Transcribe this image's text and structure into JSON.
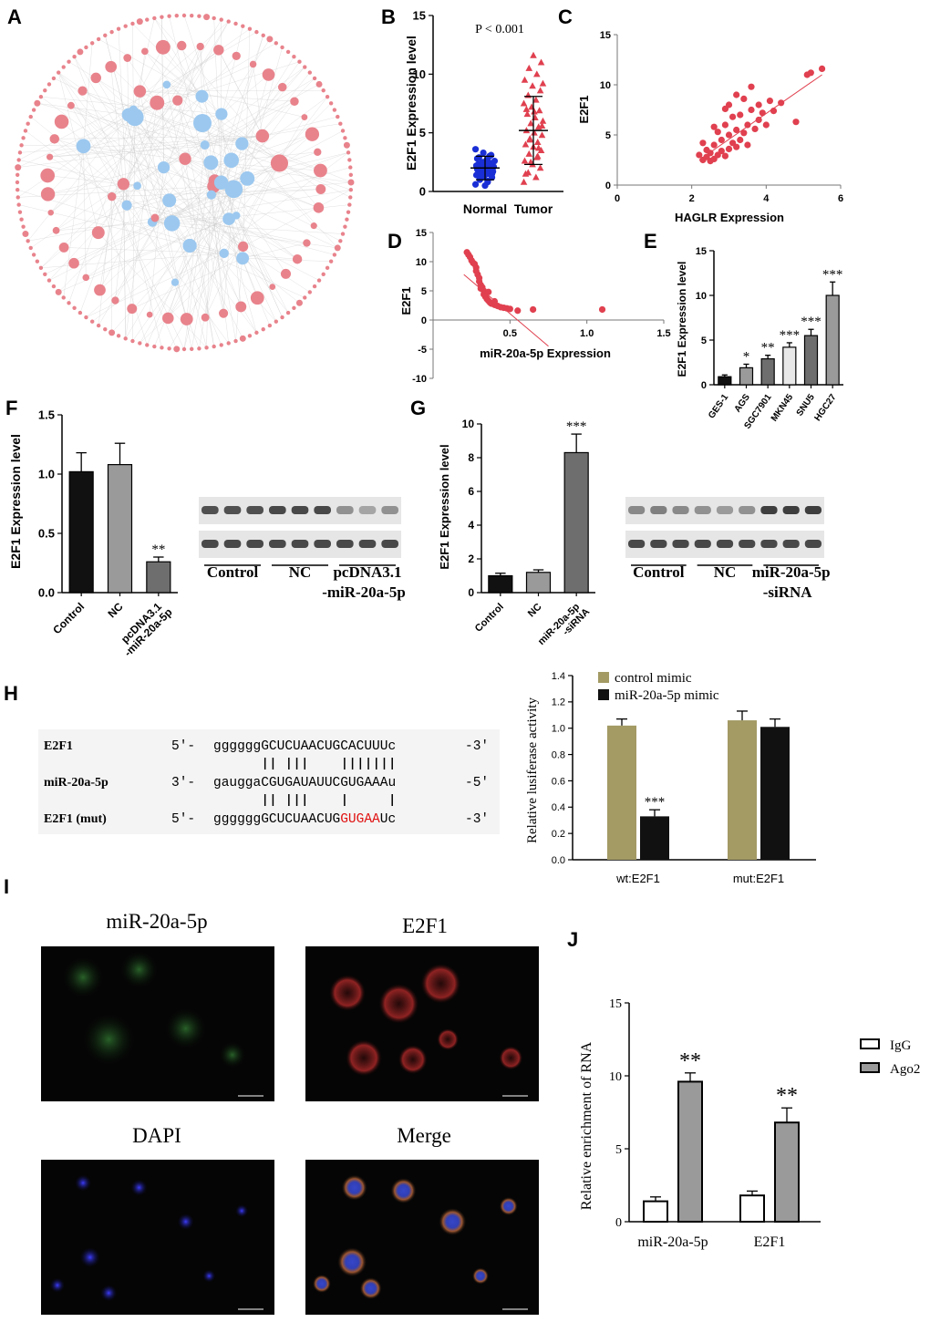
{
  "panels": {
    "A": "A",
    "B": "B",
    "C": "C",
    "D": "D",
    "E": "E",
    "F": "F",
    "G": "G",
    "H": "H",
    "I": "I",
    "J": "J"
  },
  "colors": {
    "red": "#e0404f",
    "blue": "#1a2fd6",
    "network_pink": "#e8838c",
    "network_blue": "#9cc8ef",
    "olive": "#a39a64",
    "gray": "#9a9a9a",
    "darkgray": "#6e6e6e",
    "black": "#111111"
  },
  "chart_data": [
    {
      "panel": "A",
      "type": "network",
      "title": "",
      "node_groups": [
        {
          "color": "#e8838c"
        },
        {
          "color": "#9cc8ef"
        }
      ]
    },
    {
      "panel": "B",
      "type": "scatter",
      "ylabel": "E2F1 Expression level",
      "annotation": "P < 0.001",
      "ylim": [
        0,
        15
      ],
      "yticks": [
        "0",
        "5",
        "10",
        "15"
      ],
      "categories": [
        "Normal",
        "Tumor"
      ],
      "series": [
        {
          "name": "Normal",
          "color": "#1a2fd6",
          "mean": 2.0,
          "sd": 1.0,
          "values": [
            0.6,
            0.9,
            1.1,
            1.2,
            1.3,
            1.4,
            1.5,
            1.6,
            1.7,
            1.8,
            1.9,
            2.0,
            2.0,
            2.1,
            2.2,
            2.3,
            2.4,
            2.5,
            2.6,
            2.7,
            2.9,
            3.1,
            3.3,
            3.6,
            0.8,
            1.0,
            1.5,
            1.9,
            2.2,
            2.5,
            1.2,
            1.7,
            0.5,
            2.8,
            3.0
          ]
        },
        {
          "name": "Tumor",
          "color": "#e0404f",
          "mean": 5.2,
          "sd": 2.9,
          "values": [
            0.8,
            1.2,
            1.6,
            2.0,
            2.3,
            2.6,
            2.9,
            3.2,
            3.5,
            3.8,
            4.0,
            4.2,
            4.5,
            4.8,
            5.0,
            5.2,
            5.5,
            5.8,
            6.0,
            6.3,
            6.6,
            6.9,
            7.2,
            7.5,
            7.8,
            8.2,
            8.6,
            9.0,
            9.5,
            10.0,
            10.5,
            11.0,
            11.6,
            1.5,
            3.0,
            4.4,
            5.6,
            6.8,
            7.0,
            3.7,
            2.5,
            9.2
          ]
        }
      ]
    },
    {
      "panel": "C",
      "type": "scatter",
      "xlabel": "HAGLR Expression",
      "ylabel": "E2F1",
      "xlim": [
        0,
        6
      ],
      "ylim": [
        0,
        15
      ],
      "xticks": [
        "0",
        "2",
        "4",
        "6"
      ],
      "yticks": [
        "0",
        "5",
        "10",
        "15"
      ],
      "color": "#e0404f",
      "points": [
        [
          2.2,
          3.0
        ],
        [
          2.3,
          2.5
        ],
        [
          2.4,
          2.8
        ],
        [
          2.4,
          3.5
        ],
        [
          2.5,
          2.4
        ],
        [
          2.5,
          3.2
        ],
        [
          2.6,
          2.6
        ],
        [
          2.6,
          4.0
        ],
        [
          2.7,
          3.0
        ],
        [
          2.7,
          5.3
        ],
        [
          2.8,
          3.4
        ],
        [
          2.8,
          4.5
        ],
        [
          2.9,
          2.9
        ],
        [
          2.9,
          6.0
        ],
        [
          3.0,
          3.6
        ],
        [
          3.0,
          5.0
        ],
        [
          3.0,
          8.0
        ],
        [
          3.1,
          4.2
        ],
        [
          3.1,
          6.8
        ],
        [
          3.2,
          3.8
        ],
        [
          3.2,
          5.5
        ],
        [
          3.2,
          9.0
        ],
        [
          3.3,
          4.5
        ],
        [
          3.3,
          7.0
        ],
        [
          3.4,
          5.2
        ],
        [
          3.4,
          8.6
        ],
        [
          3.5,
          6.0
        ],
        [
          3.5,
          4.0
        ],
        [
          3.6,
          7.5
        ],
        [
          3.6,
          9.8
        ],
        [
          3.7,
          5.6
        ],
        [
          3.8,
          6.5
        ],
        [
          3.8,
          8.0
        ],
        [
          3.9,
          7.2
        ],
        [
          4.0,
          6.0
        ],
        [
          4.1,
          8.4
        ],
        [
          4.2,
          7.4
        ],
        [
          4.4,
          8.2
        ],
        [
          4.8,
          6.3
        ],
        [
          5.1,
          11.0
        ],
        [
          5.2,
          11.2
        ],
        [
          5.5,
          11.6
        ],
        [
          2.3,
          4.2
        ],
        [
          2.6,
          5.8
        ],
        [
          2.9,
          7.6
        ]
      ],
      "trend": [
        [
          2.2,
          2.5
        ],
        [
          5.5,
          11.0
        ]
      ]
    },
    {
      "panel": "D",
      "type": "scatter",
      "xlabel": "miR-20a-5p Expression",
      "ylabel": "E2F1",
      "xlim": [
        0,
        1.5
      ],
      "ylim": [
        -10,
        15
      ],
      "xticks": [
        "0.5",
        "1.0",
        "1.5"
      ],
      "yticks": [
        "-10",
        "-5",
        "0",
        "5",
        "10",
        "15"
      ],
      "color": "#e0404f",
      "points": [
        [
          0.22,
          11.6
        ],
        [
          0.23,
          11.2
        ],
        [
          0.24,
          10.8
        ],
        [
          0.25,
          10.2
        ],
        [
          0.26,
          9.8
        ],
        [
          0.27,
          9.6
        ],
        [
          0.28,
          9.0
        ],
        [
          0.28,
          8.4
        ],
        [
          0.29,
          7.8
        ],
        [
          0.3,
          7.2
        ],
        [
          0.3,
          6.6
        ],
        [
          0.31,
          6.0
        ],
        [
          0.32,
          5.6
        ],
        [
          0.33,
          5.0
        ],
        [
          0.33,
          4.4
        ],
        [
          0.34,
          4.0
        ],
        [
          0.35,
          3.6
        ],
        [
          0.36,
          3.3
        ],
        [
          0.37,
          3.0
        ],
        [
          0.38,
          2.8
        ],
        [
          0.4,
          2.6
        ],
        [
          0.42,
          2.4
        ],
        [
          0.44,
          2.2
        ],
        [
          0.46,
          2.1
        ],
        [
          0.48,
          2.0
        ],
        [
          0.5,
          1.9
        ],
        [
          0.36,
          4.8
        ],
        [
          0.31,
          5.4
        ],
        [
          0.4,
          3.2
        ],
        [
          0.55,
          1.6
        ],
        [
          0.65,
          1.8
        ],
        [
          1.1,
          1.8
        ]
      ],
      "trend": [
        [
          0.2,
          7.8
        ],
        [
          0.75,
          -4.5
        ]
      ]
    },
    {
      "panel": "E",
      "type": "bar",
      "ylabel": "E2F1 Expression level",
      "ylim": [
        0,
        15
      ],
      "yticks": [
        "0",
        "5",
        "10",
        "15"
      ],
      "categories": [
        "GES-1",
        "AGS",
        "SGC7901",
        "MKN45",
        "SNU5",
        "HGC27"
      ],
      "values": [
        0.9,
        1.9,
        2.9,
        4.2,
        5.5,
        10.0
      ],
      "errors": [
        0.2,
        0.4,
        0.4,
        0.5,
        0.7,
        1.5
      ],
      "stars": [
        "",
        "*",
        "**",
        "***",
        "***",
        "***"
      ],
      "colors": [
        "#111111",
        "#9a9a9a",
        "#6e6e6e",
        "#e8e8e8",
        "#6e6e6e",
        "#9a9a9a"
      ]
    },
    {
      "panel": "F",
      "type": "bar",
      "ylabel": "E2F1 Expression level",
      "ylim": [
        0,
        1.5
      ],
      "yticks": [
        "0.0",
        "0.5",
        "1.0",
        "1.5"
      ],
      "categories": [
        "Control",
        "NC",
        "pcDNA3.1\n-miR-20a-5p"
      ],
      "values": [
        1.02,
        1.08,
        0.26
      ],
      "errors": [
        0.16,
        0.18,
        0.04
      ],
      "stars": [
        "",
        "",
        "**"
      ],
      "colors": [
        "#111111",
        "#9a9a9a",
        "#6e6e6e"
      ],
      "blot_labels": [
        "Control",
        "NC",
        "pcDNA3.1\n-miR-20a-5p"
      ]
    },
    {
      "panel": "G",
      "type": "bar",
      "ylabel": "E2F1 Expression level",
      "ylim": [
        0,
        10
      ],
      "yticks": [
        "0",
        "2",
        "4",
        "6",
        "8",
        "10"
      ],
      "categories": [
        "Control",
        "NC",
        "miR-20a-5p\n-siRNA"
      ],
      "values": [
        1.0,
        1.2,
        8.3
      ],
      "errors": [
        0.15,
        0.15,
        1.1
      ],
      "stars": [
        "",
        "",
        "***"
      ],
      "colors": [
        "#111111",
        "#9a9a9a",
        "#6e6e6e"
      ],
      "blot_labels": [
        "Control",
        "NC",
        "miR-20a-5p\n-siRNA"
      ]
    },
    {
      "panel": "H",
      "type": "bar",
      "ylabel": "Relative lusiferase activity",
      "ylim": [
        0,
        1.4
      ],
      "yticks": [
        "0.0",
        "0.2",
        "0.4",
        "0.6",
        "0.8",
        "1.0",
        "1.2",
        "1.4"
      ],
      "categories": [
        "wt:E2F1",
        "mut:E2F1"
      ],
      "series": [
        {
          "name": "control mimic",
          "color": "#a39a64",
          "values": [
            1.02,
            1.06
          ],
          "errors": [
            0.05,
            0.07
          ]
        },
        {
          "name": "miR-20a-5p mimic",
          "color": "#111111",
          "values": [
            0.33,
            1.01
          ],
          "errors": [
            0.05,
            0.06
          ]
        }
      ],
      "stars": [
        "***",
        ""
      ]
    },
    {
      "panel": "J",
      "type": "bar",
      "ylabel": "Relative enrichment of RNA",
      "ylim": [
        0,
        15
      ],
      "yticks": [
        "0",
        "5",
        "10",
        "15"
      ],
      "categories": [
        "miR-20a-5p",
        "E2F1"
      ],
      "series": [
        {
          "name": "IgG",
          "color": "#ffffff",
          "values": [
            1.4,
            1.8
          ],
          "errors": [
            0.3,
            0.3
          ]
        },
        {
          "name": "Ago2",
          "color": "#9a9a9a",
          "values": [
            9.6,
            6.8
          ],
          "errors": [
            0.6,
            1.0
          ]
        }
      ],
      "stars": [
        "**",
        "**"
      ]
    }
  ],
  "sequence": {
    "rows": [
      {
        "name": "E2F1",
        "prefix": "5′-",
        "lower": "gggggg",
        "upper": "GCUCUAACUGCACUUUc",
        "red": "",
        "tail": "",
        "suffix": "-3′"
      },
      {
        "name": "miR-20a-5p",
        "prefix": "3′-",
        "lower": "gaugga",
        "upper": "CGUGAUAUUCGUGAAAu",
        "red": "",
        "tail": "",
        "suffix": "-5′"
      },
      {
        "name": "E2F1 (mut)",
        "prefix": "5′-",
        "lower": "gggggg",
        "upper": "GCUCUAACUG",
        "red": "GUGAA",
        "tail": "Uc",
        "suffix": "-3′"
      }
    ],
    "pairs1": "|| |||    |||||||",
    "pairs2": "|| |||    |     |"
  },
  "microscopy": {
    "titles": [
      "miR-20a-5p",
      "E2F1",
      "DAPI",
      "Merge"
    ]
  }
}
